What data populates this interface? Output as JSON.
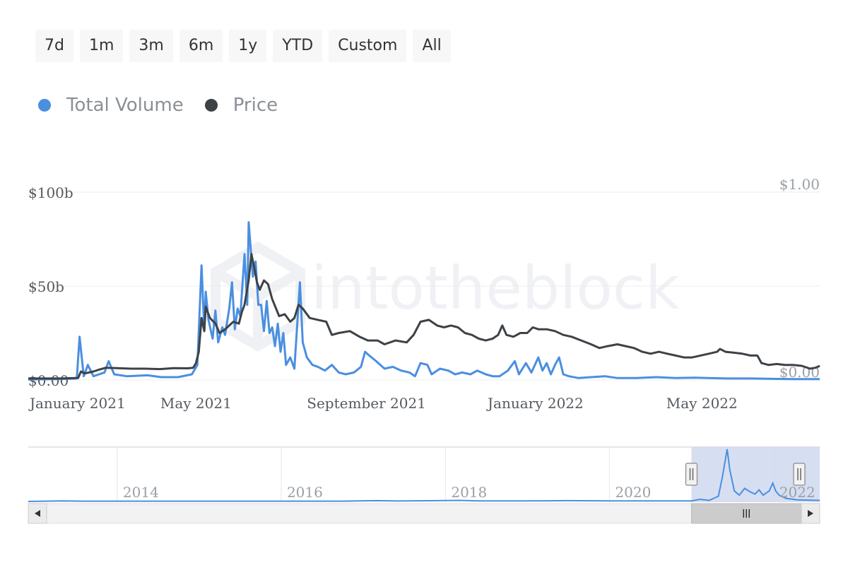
{
  "range_buttons": [
    "7d",
    "1m",
    "3m",
    "6m",
    "1y",
    "YTD",
    "Custom",
    "All"
  ],
  "legend": [
    {
      "label": "Total Volume",
      "color": "#4a8fe0"
    },
    {
      "label": "Price",
      "color": "#3d4247"
    }
  ],
  "watermark": "intotheblock",
  "colors": {
    "volume": "#4a8fe0",
    "price": "#3d4247",
    "navigator_mask": "#cfd8ee",
    "grid": "#ececec"
  },
  "chart_data": {
    "type": "line",
    "x_domain": [
      "2020-12-31",
      "2022-07-25"
    ],
    "y_left": {
      "min": 0,
      "max": 100,
      "unit": "billion USD",
      "ticks": [
        0,
        50,
        100
      ],
      "tick_labels": [
        "$0.00",
        "$50b",
        "$100b"
      ]
    },
    "y_right": {
      "min": 0,
      "max": 1,
      "unit": "USD",
      "ticks": [
        0,
        1
      ],
      "tick_labels": [
        "$0.00",
        "$1.00"
      ]
    },
    "x_ticks": [
      {
        "date": "2021-01-01",
        "label": "January 2021"
      },
      {
        "date": "2021-05-01",
        "label": "May 2021"
      },
      {
        "date": "2021-09-01",
        "label": "September 2021"
      },
      {
        "date": "2022-01-01",
        "label": "January 2022"
      },
      {
        "date": "2022-05-01",
        "label": "May 2022"
      }
    ],
    "series": [
      {
        "name": "Total Volume",
        "axis": "left",
        "points": [
          [
            "2020-12-31",
            0.3
          ],
          [
            "2021-01-22",
            0.5
          ],
          [
            "2021-02-04",
            0.8
          ],
          [
            "2021-02-06",
            23
          ],
          [
            "2021-02-09",
            2
          ],
          [
            "2021-02-12",
            8
          ],
          [
            "2021-02-16",
            2
          ],
          [
            "2021-02-24",
            4
          ],
          [
            "2021-02-27",
            10
          ],
          [
            "2021-03-03",
            3
          ],
          [
            "2021-03-12",
            2
          ],
          [
            "2021-03-27",
            2.5
          ],
          [
            "2021-04-06",
            1.5
          ],
          [
            "2021-04-18",
            1.5
          ],
          [
            "2021-04-28",
            3
          ],
          [
            "2021-05-02",
            8
          ],
          [
            "2021-05-05",
            61
          ],
          [
            "2021-05-07",
            26
          ],
          [
            "2021-05-08",
            47
          ],
          [
            "2021-05-10",
            32
          ],
          [
            "2021-05-13",
            22
          ],
          [
            "2021-05-15",
            37
          ],
          [
            "2021-05-17",
            20
          ],
          [
            "2021-05-20",
            28
          ],
          [
            "2021-05-22",
            24
          ],
          [
            "2021-05-25",
            38
          ],
          [
            "2021-05-27",
            52
          ],
          [
            "2021-05-29",
            27
          ],
          [
            "2021-05-31",
            38
          ],
          [
            "2021-06-02",
            34
          ],
          [
            "2021-06-05",
            67
          ],
          [
            "2021-06-07",
            40
          ],
          [
            "2021-06-08",
            84
          ],
          [
            "2021-06-11",
            55
          ],
          [
            "2021-06-13",
            63
          ],
          [
            "2021-06-15",
            40
          ],
          [
            "2021-06-17",
            40
          ],
          [
            "2021-06-19",
            26
          ],
          [
            "2021-06-21",
            42
          ],
          [
            "2021-06-23",
            25
          ],
          [
            "2021-06-25",
            28
          ],
          [
            "2021-06-27",
            18
          ],
          [
            "2021-06-29",
            30
          ],
          [
            "2021-07-01",
            15
          ],
          [
            "2021-07-03",
            25
          ],
          [
            "2021-07-05",
            8
          ],
          [
            "2021-07-08",
            12
          ],
          [
            "2021-07-11",
            6
          ],
          [
            "2021-07-15",
            52
          ],
          [
            "2021-07-17",
            20
          ],
          [
            "2021-07-20",
            12
          ],
          [
            "2021-07-24",
            8
          ],
          [
            "2021-07-28",
            7
          ],
          [
            "2021-08-02",
            5
          ],
          [
            "2021-08-07",
            8
          ],
          [
            "2021-08-12",
            4
          ],
          [
            "2021-08-17",
            3
          ],
          [
            "2021-08-23",
            4
          ],
          [
            "2021-08-28",
            7
          ],
          [
            "2021-08-31",
            15
          ],
          [
            "2021-09-03",
            13
          ],
          [
            "2021-09-08",
            10
          ],
          [
            "2021-09-14",
            6
          ],
          [
            "2021-09-20",
            7
          ],
          [
            "2021-09-26",
            5
          ],
          [
            "2021-10-02",
            4
          ],
          [
            "2021-10-06",
            2
          ],
          [
            "2021-10-10",
            9
          ],
          [
            "2021-10-15",
            8
          ],
          [
            "2021-10-18",
            3
          ],
          [
            "2021-10-24",
            6
          ],
          [
            "2021-10-30",
            5
          ],
          [
            "2021-11-04",
            3
          ],
          [
            "2021-11-09",
            4
          ],
          [
            "2021-11-15",
            3
          ],
          [
            "2021-11-20",
            5
          ],
          [
            "2021-11-26",
            3
          ],
          [
            "2021-12-01",
            2
          ],
          [
            "2021-12-06",
            2
          ],
          [
            "2021-12-12",
            5
          ],
          [
            "2021-12-17",
            10
          ],
          [
            "2021-12-20",
            3
          ],
          [
            "2021-12-25",
            9
          ],
          [
            "2021-12-29",
            4
          ],
          [
            "2022-01-03",
            12
          ],
          [
            "2022-01-06",
            5
          ],
          [
            "2022-01-09",
            9
          ],
          [
            "2022-01-12",
            3
          ],
          [
            "2022-01-15",
            8
          ],
          [
            "2022-01-18",
            12
          ],
          [
            "2022-01-21",
            3
          ],
          [
            "2022-01-25",
            2
          ],
          [
            "2022-02-01",
            1
          ],
          [
            "2022-02-10",
            1.5
          ],
          [
            "2022-02-20",
            2
          ],
          [
            "2022-03-01",
            1
          ],
          [
            "2022-03-15",
            1
          ],
          [
            "2022-03-29",
            1.5
          ],
          [
            "2022-04-12",
            1
          ],
          [
            "2022-04-26",
            1.2
          ],
          [
            "2022-05-05",
            1
          ],
          [
            "2022-05-20",
            0.8
          ],
          [
            "2022-06-05",
            0.8
          ],
          [
            "2022-06-20",
            0.6
          ],
          [
            "2022-07-05",
            0.5
          ],
          [
            "2022-07-25",
            0.5
          ]
        ]
      },
      {
        "name": "Price",
        "axis": "right",
        "points": [
          [
            "2020-12-31",
            0.008
          ],
          [
            "2021-01-24",
            0.008
          ],
          [
            "2021-02-05",
            0.011
          ],
          [
            "2021-02-07",
            0.045
          ],
          [
            "2021-02-10",
            0.035
          ],
          [
            "2021-02-16",
            0.045
          ],
          [
            "2021-02-20",
            0.055
          ],
          [
            "2021-02-25",
            0.065
          ],
          [
            "2021-03-05",
            0.063
          ],
          [
            "2021-03-15",
            0.06
          ],
          [
            "2021-03-25",
            0.06
          ],
          [
            "2021-04-05",
            0.058
          ],
          [
            "2021-04-15",
            0.063
          ],
          [
            "2021-04-25",
            0.062
          ],
          [
            "2021-04-29",
            0.065
          ],
          [
            "2021-05-01",
            0.09
          ],
          [
            "2021-05-03",
            0.15
          ],
          [
            "2021-05-05",
            0.33
          ],
          [
            "2021-05-07",
            0.26
          ],
          [
            "2021-05-08",
            0.39
          ],
          [
            "2021-05-11",
            0.33
          ],
          [
            "2021-05-15",
            0.3
          ],
          [
            "2021-05-18",
            0.25
          ],
          [
            "2021-05-22",
            0.27
          ],
          [
            "2021-05-25",
            0.29
          ],
          [
            "2021-05-28",
            0.31
          ],
          [
            "2021-06-01",
            0.3
          ],
          [
            "2021-06-03",
            0.36
          ],
          [
            "2021-06-05",
            0.4
          ],
          [
            "2021-06-08",
            0.53
          ],
          [
            "2021-06-10",
            0.67
          ],
          [
            "2021-06-12",
            0.6
          ],
          [
            "2021-06-14",
            0.52
          ],
          [
            "2021-06-16",
            0.48
          ],
          [
            "2021-06-19",
            0.53
          ],
          [
            "2021-06-22",
            0.51
          ],
          [
            "2021-06-25",
            0.43
          ],
          [
            "2021-06-30",
            0.34
          ],
          [
            "2021-07-04",
            0.35
          ],
          [
            "2021-07-08",
            0.31
          ],
          [
            "2021-07-11",
            0.33
          ],
          [
            "2021-07-14",
            0.4
          ],
          [
            "2021-07-17",
            0.38
          ],
          [
            "2021-07-22",
            0.33
          ],
          [
            "2021-07-28",
            0.32
          ],
          [
            "2021-08-03",
            0.31
          ],
          [
            "2021-08-07",
            0.24
          ],
          [
            "2021-08-12",
            0.25
          ],
          [
            "2021-08-20",
            0.26
          ],
          [
            "2021-08-27",
            0.23
          ],
          [
            "2021-09-02",
            0.21
          ],
          [
            "2021-09-09",
            0.21
          ],
          [
            "2021-09-14",
            0.19
          ],
          [
            "2021-09-22",
            0.21
          ],
          [
            "2021-09-30",
            0.2
          ],
          [
            "2021-10-05",
            0.24
          ],
          [
            "2021-10-10",
            0.31
          ],
          [
            "2021-10-16",
            0.32
          ],
          [
            "2021-10-22",
            0.29
          ],
          [
            "2021-10-27",
            0.28
          ],
          [
            "2021-11-01",
            0.29
          ],
          [
            "2021-11-06",
            0.28
          ],
          [
            "2021-11-11",
            0.25
          ],
          [
            "2021-11-16",
            0.24
          ],
          [
            "2021-11-21",
            0.22
          ],
          [
            "2021-11-26",
            0.21
          ],
          [
            "2021-12-01",
            0.22
          ],
          [
            "2021-12-05",
            0.24
          ],
          [
            "2021-12-08",
            0.29
          ],
          [
            "2021-12-11",
            0.24
          ],
          [
            "2021-12-16",
            0.23
          ],
          [
            "2021-12-21",
            0.25
          ],
          [
            "2021-12-26",
            0.25
          ],
          [
            "2021-12-30",
            0.28
          ],
          [
            "2022-01-03",
            0.27
          ],
          [
            "2022-01-09",
            0.27
          ],
          [
            "2022-01-15",
            0.26
          ],
          [
            "2022-01-21",
            0.24
          ],
          [
            "2022-01-27",
            0.23
          ],
          [
            "2022-02-03",
            0.21
          ],
          [
            "2022-02-10",
            0.19
          ],
          [
            "2022-02-16",
            0.17
          ],
          [
            "2022-02-22",
            0.18
          ],
          [
            "2022-03-01",
            0.19
          ],
          [
            "2022-03-07",
            0.18
          ],
          [
            "2022-03-13",
            0.17
          ],
          [
            "2022-03-19",
            0.15
          ],
          [
            "2022-03-25",
            0.14
          ],
          [
            "2022-03-31",
            0.15
          ],
          [
            "2022-04-06",
            0.14
          ],
          [
            "2022-04-12",
            0.13
          ],
          [
            "2022-04-18",
            0.12
          ],
          [
            "2022-04-24",
            0.12
          ],
          [
            "2022-04-30",
            0.13
          ],
          [
            "2022-05-06",
            0.14
          ],
          [
            "2022-05-12",
            0.15
          ],
          [
            "2022-05-14",
            0.165
          ],
          [
            "2022-05-18",
            0.15
          ],
          [
            "2022-05-24",
            0.145
          ],
          [
            "2022-05-30",
            0.14
          ],
          [
            "2022-06-05",
            0.13
          ],
          [
            "2022-06-10",
            0.13
          ],
          [
            "2022-06-13",
            0.09
          ],
          [
            "2022-06-18",
            0.08
          ],
          [
            "2022-06-24",
            0.085
          ],
          [
            "2022-06-30",
            0.08
          ],
          [
            "2022-07-06",
            0.08
          ],
          [
            "2022-07-12",
            0.075
          ],
          [
            "2022-07-18",
            0.06
          ],
          [
            "2022-07-22",
            0.065
          ],
          [
            "2022-07-25",
            0.075
          ]
        ]
      }
    ],
    "navigator": {
      "x_domain": [
        "2012-12-01",
        "2022-07-25"
      ],
      "tick_labels": [
        {
          "date": "2014-01-01",
          "label": "2014"
        },
        {
          "date": "2016-01-01",
          "label": "2016"
        },
        {
          "date": "2018-01-01",
          "label": "2018"
        },
        {
          "date": "2020-01-01",
          "label": "2020"
        },
        {
          "date": "2022-01-01",
          "label": "2022"
        }
      ],
      "selected_range": [
        "2020-12-31",
        "2022-07-25"
      ],
      "series_points": [
        [
          "2012-12-01",
          0
        ],
        [
          "2013-05-01",
          1
        ],
        [
          "2013-08-01",
          0.5
        ],
        [
          "2016-10-01",
          0.5
        ],
        [
          "2017-03-01",
          1.5
        ],
        [
          "2017-06-01",
          0.8
        ],
        [
          "2017-12-01",
          1.5
        ],
        [
          "2018-03-01",
          2
        ],
        [
          "2018-06-01",
          1
        ],
        [
          "2019-01-01",
          1
        ],
        [
          "2019-07-01",
          1.5
        ],
        [
          "2020-01-01",
          1
        ],
        [
          "2020-12-31",
          1
        ],
        [
          "2021-02-06",
          4
        ],
        [
          "2021-03-20",
          2
        ],
        [
          "2021-04-30",
          10
        ],
        [
          "2021-05-17",
          45
        ],
        [
          "2021-06-08",
          100
        ],
        [
          "2021-06-20",
          60
        ],
        [
          "2021-07-10",
          20
        ],
        [
          "2021-08-01",
          12
        ],
        [
          "2021-08-25",
          25
        ],
        [
          "2021-09-20",
          18
        ],
        [
          "2021-10-10",
          14
        ],
        [
          "2021-10-28",
          22
        ],
        [
          "2021-11-15",
          12
        ],
        [
          "2021-12-12",
          20
        ],
        [
          "2021-12-28",
          35
        ],
        [
          "2022-01-10",
          20
        ],
        [
          "2022-01-25",
          12
        ],
        [
          "2022-02-25",
          6
        ],
        [
          "2022-04-15",
          3
        ],
        [
          "2022-07-25",
          2
        ]
      ]
    }
  }
}
